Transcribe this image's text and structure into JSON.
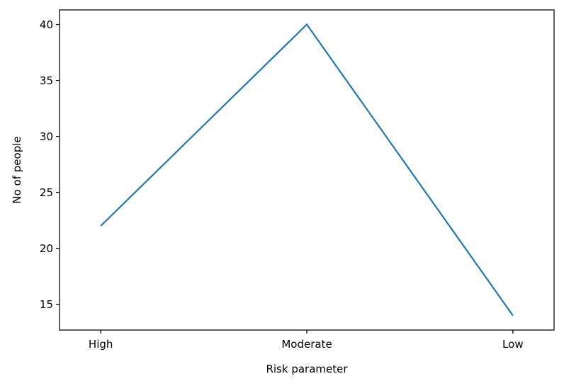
{
  "chart_data": {
    "type": "line",
    "title": "",
    "xlabel": "Risk parameter",
    "ylabel": "No of people",
    "categories": [
      "High",
      "Moderate",
      "Low"
    ],
    "series": [
      {
        "values": [
          22,
          40,
          14
        ],
        "color": "#1f77b4"
      }
    ],
    "ylim": [
      12.7,
      41.3
    ],
    "yticks": [
      15,
      20,
      25,
      30,
      35,
      40
    ],
    "grid": false,
    "legend": "none"
  }
}
